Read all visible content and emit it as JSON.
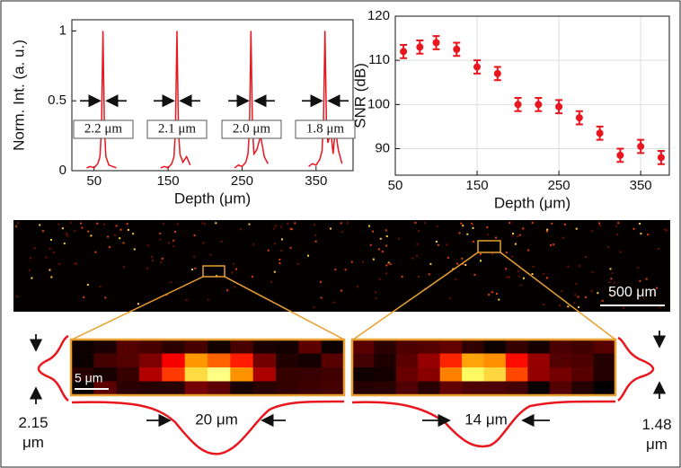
{
  "chart_data": [
    {
      "type": "line",
      "ylabel": "Norm. Int. (a. u.)",
      "xlabel": "Depth (μm)",
      "xlim": [
        20,
        400
      ],
      "ylim": [
        0,
        1.08
      ],
      "xticks": [
        50,
        150,
        250,
        350
      ],
      "yticks": [
        0,
        0.5,
        1
      ],
      "annotations": [
        "2.2 μm",
        "2.1 μm",
        "2.0 μm",
        "1.8 μm"
      ],
      "series": [
        {
          "color": "#e8161e",
          "x": [
            40,
            45,
            50,
            55,
            58,
            60,
            62,
            64,
            66,
            70,
            75,
            80,
            85,
            140,
            145,
            150,
            155,
            158,
            160,
            162,
            164,
            166,
            170,
            175,
            180,
            185,
            240,
            245,
            250,
            255,
            258,
            260,
            262,
            264,
            266,
            270,
            275,
            280,
            285,
            290,
            340,
            345,
            350,
            355,
            358,
            360,
            362,
            364,
            366,
            370,
            373,
            376,
            380,
            385
          ],
          "values": [
            0.02,
            0.03,
            0.02,
            0.05,
            0.1,
            0.3,
            1,
            0.3,
            0.1,
            0.04,
            0.03,
            0.02,
            null,
            0.02,
            0.03,
            0.02,
            0.05,
            0.1,
            0.3,
            1,
            0.3,
            0.12,
            0.06,
            0.1,
            0.04,
            null,
            0.02,
            0.04,
            0.03,
            0.06,
            0.12,
            0.3,
            1,
            0.32,
            0.12,
            0.15,
            0.25,
            0.1,
            0.05,
            null,
            0.03,
            0.05,
            0.04,
            0.08,
            0.14,
            0.35,
            1,
            0.35,
            0.2,
            0.28,
            0.12,
            0.3,
            0.15,
            0.05
          ]
        }
      ]
    },
    {
      "type": "scatter",
      "ylabel": "SNR (dB)",
      "xlabel": "Depth (μm)",
      "xlim": [
        50,
        385
      ],
      "ylim": [
        84,
        120
      ],
      "xticks": [
        50,
        150,
        250,
        350
      ],
      "yticks": [
        90,
        100,
        110,
        120
      ],
      "grid": true,
      "series": [
        {
          "color": "#e8161e",
          "x": [
            60,
            80,
            100,
            125,
            150,
            175,
            200,
            225,
            250,
            275,
            300,
            325,
            350,
            375
          ],
          "values": [
            112,
            113,
            114,
            112.5,
            108.5,
            107,
            100,
            100,
            99.5,
            97,
            93.5,
            88.5,
            90.5,
            88
          ],
          "errors": [
            1.5,
            1.5,
            1.5,
            1.5,
            1.5,
            1.5,
            1.5,
            1.5,
            1.5,
            1.5,
            1.5,
            1.5,
            1.5,
            1.5
          ]
        }
      ]
    }
  ],
  "image_labels": {
    "scale_oct": "500 μm",
    "scale_zoom": "5 μm",
    "width_left": "20 μm",
    "width_right": "14 μm",
    "height_left": "2.15 μm",
    "height_right": "1.48 μm"
  }
}
